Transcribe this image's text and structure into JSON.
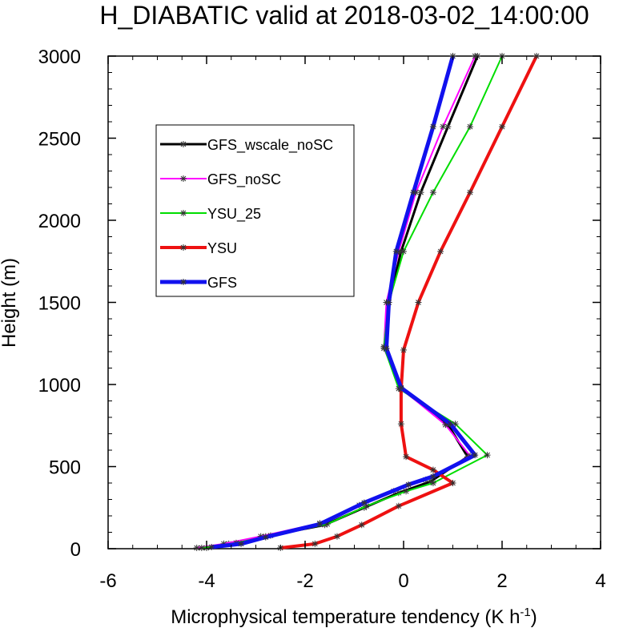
{
  "chart_data": {
    "type": "line",
    "title": "H_DIABATIC valid at 2018-03-02_14:00:00",
    "xlabel": "Microphysical temperature tendency (K h",
    "xlabel_unit_superscript": "-1",
    "xlabel_close": ")",
    "ylabel": "Height (m)",
    "xlim": [
      -6,
      4
    ],
    "ylim": [
      0,
      3000
    ],
    "x_ticks": [
      -6,
      -4,
      -2,
      0,
      2,
      4
    ],
    "x_tick_labels": [
      "-6",
      "-4",
      "-2",
      "0",
      "2",
      "4"
    ],
    "y_ticks": [
      0,
      500,
      1000,
      1500,
      2000,
      2500,
      3000
    ],
    "y_tick_labels": [
      "0",
      "500",
      "1000",
      "1500",
      "2000",
      "2500",
      "3000"
    ],
    "grid": false,
    "legend_position": "top-left",
    "series": [
      {
        "name": "GFS_wscale_noSC",
        "color": "#000000",
        "width": 3,
        "points": [
          [
            -4.0,
            5
          ],
          [
            -3.55,
            30
          ],
          [
            -2.8,
            75
          ],
          [
            -1.6,
            145
          ],
          [
            -0.8,
            250
          ],
          [
            -0.1,
            340
          ],
          [
            0.55,
            410
          ],
          [
            1.3,
            560
          ],
          [
            0.9,
            755
          ],
          [
            -0.05,
            975
          ],
          [
            -0.35,
            1220
          ],
          [
            -0.3,
            1500
          ],
          [
            -0.05,
            1810
          ],
          [
            0.35,
            2170
          ],
          [
            0.9,
            2570
          ],
          [
            1.5,
            3000
          ]
        ]
      },
      {
        "name": "GFS_noSC",
        "color": "#ff00ff",
        "width": 2,
        "points": [
          [
            -4.2,
            5
          ],
          [
            -3.65,
            30
          ],
          [
            -2.9,
            75
          ],
          [
            -1.7,
            155
          ],
          [
            -0.9,
            265
          ],
          [
            -0.2,
            350
          ],
          [
            0.45,
            420
          ],
          [
            1.35,
            565
          ],
          [
            0.85,
            755
          ],
          [
            -0.05,
            975
          ],
          [
            -0.4,
            1220
          ],
          [
            -0.35,
            1500
          ],
          [
            -0.1,
            1810
          ],
          [
            0.25,
            2170
          ],
          [
            0.8,
            2570
          ],
          [
            1.45,
            3000
          ]
        ]
      },
      {
        "name": "YSU_25",
        "color": "#00dd00",
        "width": 2,
        "points": [
          [
            -4.1,
            5
          ],
          [
            -3.4,
            35
          ],
          [
            -2.7,
            80
          ],
          [
            -1.55,
            150
          ],
          [
            -0.75,
            260
          ],
          [
            0.05,
            350
          ],
          [
            0.6,
            400
          ],
          [
            1.7,
            570
          ],
          [
            1.05,
            760
          ],
          [
            -0.1,
            975
          ],
          [
            -0.4,
            1230
          ],
          [
            -0.3,
            1500
          ],
          [
            0.0,
            1810
          ],
          [
            0.6,
            2170
          ],
          [
            1.35,
            2570
          ],
          [
            2.0,
            3000
          ]
        ]
      },
      {
        "name": "YSU",
        "color": "#ee1111",
        "width": 4,
        "points": [
          [
            -2.5,
            5
          ],
          [
            -1.8,
            30
          ],
          [
            -1.35,
            75
          ],
          [
            -0.85,
            145
          ],
          [
            -0.1,
            260
          ],
          [
            1.0,
            400
          ],
          [
            0.6,
            480
          ],
          [
            0.05,
            560
          ],
          [
            -0.05,
            760
          ],
          [
            -0.05,
            970
          ],
          [
            0.0,
            1210
          ],
          [
            0.3,
            1500
          ],
          [
            0.75,
            1810
          ],
          [
            1.35,
            2170
          ],
          [
            2.0,
            2570
          ],
          [
            2.7,
            3000
          ]
        ]
      },
      {
        "name": "GFS",
        "color": "#1111ee",
        "width": 5,
        "points": [
          [
            -3.9,
            10
          ],
          [
            -3.3,
            30
          ],
          [
            -2.8,
            70
          ],
          [
            -1.7,
            150
          ],
          [
            -0.8,
            280
          ],
          [
            0.1,
            390
          ],
          [
            0.6,
            440
          ],
          [
            1.45,
            570
          ],
          [
            0.95,
            760
          ],
          [
            -0.05,
            980
          ],
          [
            -0.35,
            1220
          ],
          [
            -0.3,
            1500
          ],
          [
            -0.15,
            1810
          ],
          [
            0.2,
            2170
          ],
          [
            0.6,
            2570
          ],
          [
            1.0,
            3000
          ]
        ]
      }
    ]
  }
}
